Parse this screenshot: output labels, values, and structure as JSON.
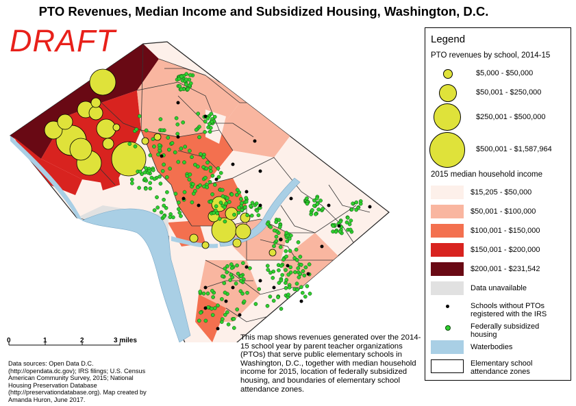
{
  "title": "PTO Revenues, Median Income and Subsidized Housing, Washington, D.C.",
  "draft": "DRAFT",
  "legend": {
    "title": "Legend",
    "pto_heading": "PTO revenues by school, 2014-15",
    "pto_classes": [
      "$5,000 - $50,000",
      "$50,001 - $250,000",
      "$250,001 - $500,000",
      "$500,001 - $1,587,964"
    ],
    "income_heading": "2015 median household income",
    "income_classes": [
      {
        "label": "$15,205 - $50,000",
        "color": "#fdf0ea"
      },
      {
        "label": "$50,001 - $100,000",
        "color": "#f9b6a0"
      },
      {
        "label": "$100,001 - $150,000",
        "color": "#f3704f"
      },
      {
        "label": "$150,001 - $200,000",
        "color": "#d8231f"
      },
      {
        "label": "$200,001 - $231,542",
        "color": "#690914"
      }
    ],
    "unavailable": {
      "label": "Data unavailable",
      "color": "#e1e1e1"
    },
    "no_pto": "Schools without PTOs registered with the IRS",
    "subsidized": "Federally subsidized housing",
    "waterbodies": {
      "label": "Waterbodies",
      "color": "#a9cfe5"
    },
    "zones": "Elementary school attendance zones"
  },
  "scale": {
    "ticks": [
      "0",
      "1",
      "2",
      "3 miles"
    ]
  },
  "description": "This map shows revenues generated over the 2014-15 school year by parent teacher organizations (PTOs) that serve public elementary schools in Washington, D.C., together with median household income for 2015, location of federally subsidized housing, and boundaries of elementary school attendance zones.",
  "sources": "Data sources: Open Data D.C. (http://opendata.dc.gov); IRS filings; U.S. Census American Community Survey, 2015; National Housing Preservation Database (http://preservationdatabase.org). Map created by Amanda Huron, June 2017.",
  "colors": {
    "pto_circle": "#dfe23a",
    "housing_dot": "#2fcf2f",
    "no_pto_dot": "#000000"
  }
}
